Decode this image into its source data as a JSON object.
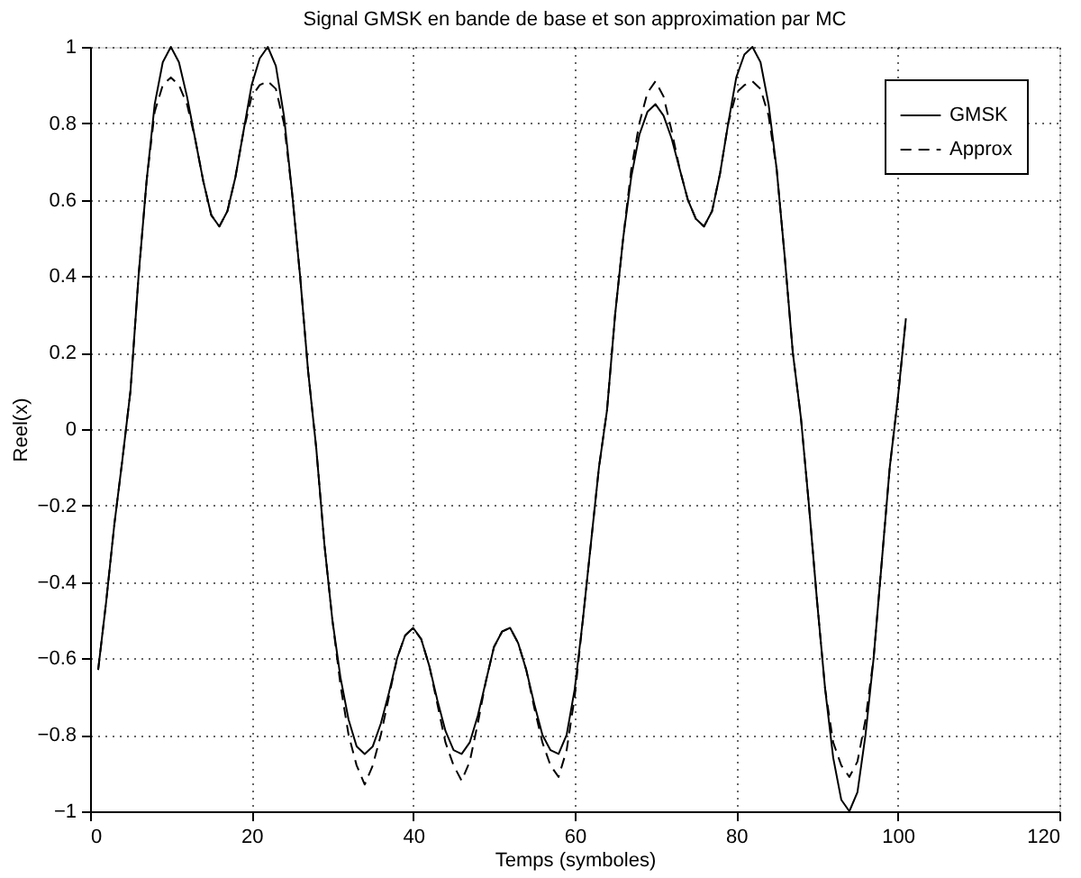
{
  "chart_data": {
    "type": "line",
    "title": "Signal GMSK en bande de base et son approximation par MC",
    "xlabel": "Temps (symboles)",
    "ylabel": "Reel(x)",
    "x": [
      1,
      2,
      3,
      4,
      5,
      6,
      7,
      8,
      9,
      10,
      11,
      12,
      13,
      14,
      15,
      16,
      17,
      18,
      19,
      20,
      21,
      22,
      23,
      24,
      25,
      26,
      27,
      28,
      29,
      30,
      31,
      32,
      33,
      34,
      35,
      36,
      37,
      38,
      39,
      40,
      41,
      42,
      43,
      44,
      45,
      46,
      47,
      48,
      49,
      50,
      51,
      52,
      53,
      54,
      55,
      56,
      57,
      58,
      59,
      60,
      61,
      62,
      63,
      64,
      65,
      66,
      67,
      68,
      69,
      70,
      71,
      72,
      73,
      74,
      75,
      76,
      77,
      78,
      79,
      80,
      81,
      82,
      83,
      84,
      85,
      86,
      87,
      88,
      89,
      90,
      91,
      92,
      93,
      94,
      95,
      96,
      97,
      98,
      99,
      100,
      101
    ],
    "series": [
      {
        "name": "GMSK",
        "color": "#000000",
        "line_style": "solid",
        "values": [
          -0.63,
          -0.45,
          -0.25,
          -0.08,
          0.1,
          0.4,
          0.65,
          0.85,
          0.96,
          1.0,
          0.96,
          0.87,
          0.76,
          0.65,
          0.56,
          0.53,
          0.57,
          0.66,
          0.78,
          0.9,
          0.97,
          1.0,
          0.95,
          0.82,
          0.62,
          0.4,
          0.15,
          -0.05,
          -0.3,
          -0.5,
          -0.65,
          -0.76,
          -0.83,
          -0.85,
          -0.83,
          -0.77,
          -0.69,
          -0.6,
          -0.54,
          -0.52,
          -0.55,
          -0.62,
          -0.71,
          -0.79,
          -0.84,
          -0.85,
          -0.82,
          -0.75,
          -0.66,
          -0.57,
          -0.53,
          -0.52,
          -0.56,
          -0.63,
          -0.72,
          -0.8,
          -0.84,
          -0.85,
          -0.8,
          -0.68,
          -0.5,
          -0.3,
          -0.1,
          0.05,
          0.3,
          0.5,
          0.66,
          0.77,
          0.83,
          0.85,
          0.82,
          0.76,
          0.68,
          0.6,
          0.55,
          0.53,
          0.57,
          0.67,
          0.8,
          0.92,
          0.98,
          1.0,
          0.96,
          0.85,
          0.68,
          0.45,
          0.2,
          0.03,
          -0.2,
          -0.45,
          -0.68,
          -0.86,
          -0.97,
          -1.0,
          -0.95,
          -0.8,
          -0.6,
          -0.35,
          -0.1,
          0.08,
          0.29
        ]
      },
      {
        "name": "Approx",
        "color": "#000000",
        "line_style": "dashed",
        "values": [
          -0.63,
          -0.45,
          -0.25,
          -0.08,
          0.1,
          0.4,
          0.65,
          0.83,
          0.9,
          0.92,
          0.9,
          0.85,
          0.76,
          0.65,
          0.56,
          0.53,
          0.57,
          0.66,
          0.78,
          0.87,
          0.9,
          0.91,
          0.89,
          0.8,
          0.62,
          0.4,
          0.15,
          -0.05,
          -0.3,
          -0.5,
          -0.67,
          -0.8,
          -0.88,
          -0.93,
          -0.88,
          -0.8,
          -0.7,
          -0.6,
          -0.54,
          -0.52,
          -0.55,
          -0.62,
          -0.72,
          -0.82,
          -0.88,
          -0.92,
          -0.87,
          -0.77,
          -0.66,
          -0.57,
          -0.53,
          -0.52,
          -0.56,
          -0.63,
          -0.73,
          -0.82,
          -0.88,
          -0.91,
          -0.84,
          -0.7,
          -0.5,
          -0.3,
          -0.1,
          0.05,
          0.3,
          0.5,
          0.68,
          0.8,
          0.88,
          0.91,
          0.87,
          0.78,
          0.68,
          0.6,
          0.55,
          0.53,
          0.57,
          0.67,
          0.8,
          0.88,
          0.9,
          0.91,
          0.89,
          0.82,
          0.68,
          0.45,
          0.2,
          0.03,
          -0.2,
          -0.45,
          -0.68,
          -0.82,
          -0.88,
          -0.91,
          -0.87,
          -0.76,
          -0.6,
          -0.35,
          -0.1,
          0.08,
          0.29
        ]
      }
    ],
    "xlim": [
      0,
      120
    ],
    "xticks": [
      0,
      20,
      40,
      60,
      80,
      100,
      120
    ],
    "ylim": [
      -1,
      1
    ],
    "yticks": [
      -1,
      -0.8,
      -0.6,
      -0.4,
      -0.2,
      0,
      0.2,
      0.4,
      0.6,
      0.8,
      1
    ],
    "grid": true,
    "legend": "top right",
    "marker": "none"
  }
}
